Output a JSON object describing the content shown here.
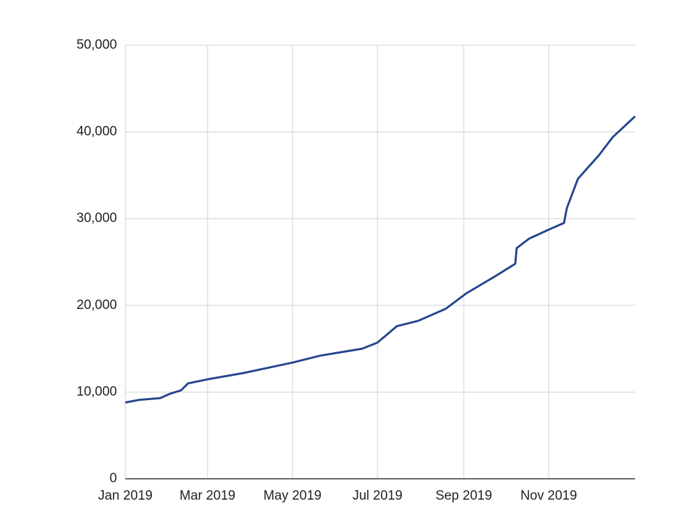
{
  "chart_data": {
    "type": "line",
    "x": [
      0,
      10,
      25,
      32,
      40,
      45,
      60,
      85,
      120,
      140,
      170,
      181,
      195,
      210,
      230,
      245,
      265,
      280,
      281,
      290,
      305,
      315,
      317,
      325,
      340,
      350,
      362,
      366
    ],
    "series": [
      {
        "color": "#27468f",
        "values": [
          8800,
          9100,
          9300,
          9800,
          10200,
          11000,
          11500,
          12200,
          13400,
          14200,
          15000,
          15700,
          17600,
          18200,
          19600,
          21400,
          23300,
          24800,
          26600,
          27700,
          28800,
          29500,
          31200,
          34600,
          37300,
          39400,
          41200,
          41800
        ]
      }
    ],
    "xlim": [
      0,
      366
    ],
    "xticks": [
      {
        "value": 0,
        "label": "Jan 2019"
      },
      {
        "value": 59,
        "label": "Mar 2019"
      },
      {
        "value": 120,
        "label": "May 2019"
      },
      {
        "value": 181,
        "label": "Jul 2019"
      },
      {
        "value": 243,
        "label": "Sep 2019"
      },
      {
        "value": 304,
        "label": "Nov 2019"
      }
    ],
    "ylim": [
      0,
      50000
    ],
    "yticks": [
      0,
      {
        "value": 10000,
        "label": "10,000"
      },
      {
        "value": 20000,
        "label": "20,000"
      },
      {
        "value": 30000,
        "label": "30,000"
      },
      {
        "value": 40000,
        "label": "40,000"
      },
      {
        "value": 50000,
        "label": "50,000"
      }
    ],
    "grid": true
  }
}
